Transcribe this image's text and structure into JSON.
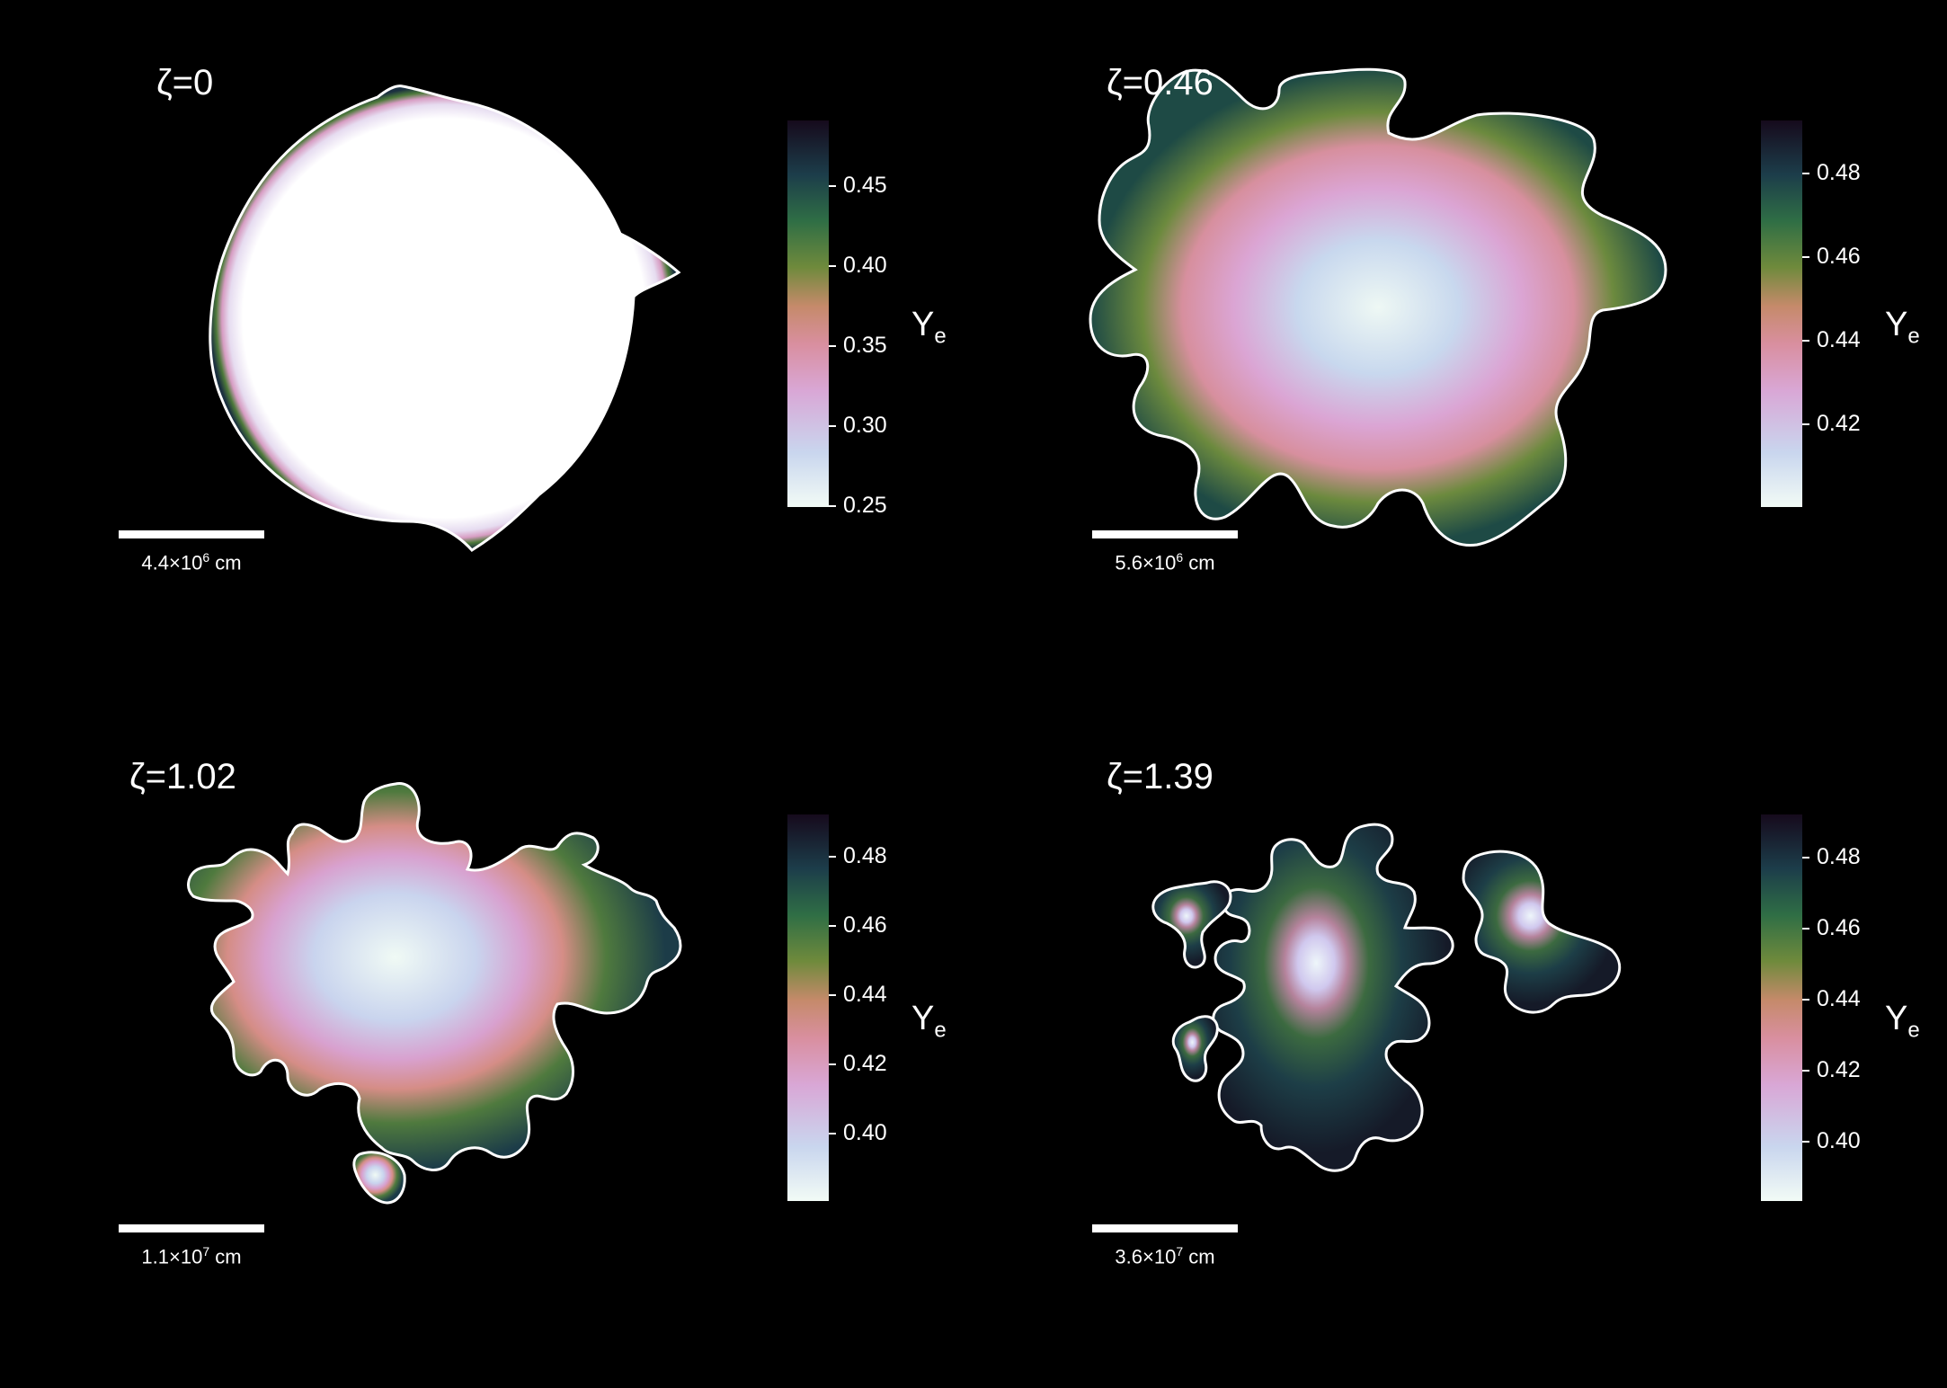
{
  "panels": [
    {
      "zeta": "ζ=0",
      "scale": {
        "mantissa": "4.4",
        "exp": "6",
        "unit": "cm"
      },
      "colorbar": {
        "label": "Y",
        "sub": "e",
        "ticks": [
          "0.45",
          "0.40",
          "0.35",
          "0.30",
          "0.25"
        ]
      }
    },
    {
      "zeta": "ζ=0.46",
      "scale": {
        "mantissa": "5.6",
        "exp": "6",
        "unit": "cm"
      },
      "colorbar": {
        "label": "Y",
        "sub": "e",
        "ticks": [
          "0.48",
          "0.46",
          "0.44",
          "0.42"
        ]
      }
    },
    {
      "zeta": "ζ=1.02",
      "scale": {
        "mantissa": "1.1",
        "exp": "7",
        "unit": "cm"
      },
      "colorbar": {
        "label": "Y",
        "sub": "e",
        "ticks": [
          "0.48",
          "0.46",
          "0.44",
          "0.42",
          "0.40"
        ]
      }
    },
    {
      "zeta": "ζ=1.39",
      "scale": {
        "mantissa": "3.6",
        "exp": "7",
        "unit": "cm"
      },
      "colorbar": {
        "label": "Y",
        "sub": "e",
        "ticks": [
          "0.48",
          "0.46",
          "0.44",
          "0.42",
          "0.40"
        ]
      }
    }
  ],
  "colors": {
    "background": "#000000",
    "colormap": [
      "#f2fbf6",
      "#c9d6ee",
      "#d9a7d6",
      "#d98fa0",
      "#c58a6a",
      "#6f8a3c",
      "#2f6e45",
      "#1c3d4a",
      "#160a1c"
    ]
  }
}
